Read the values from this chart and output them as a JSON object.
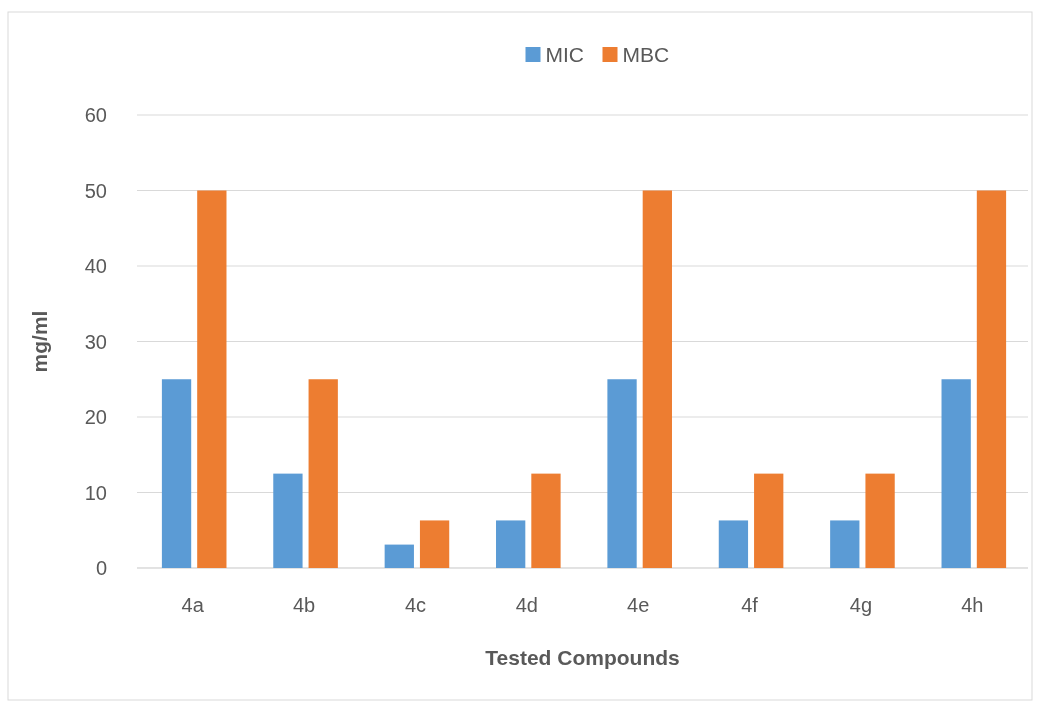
{
  "chart_data": {
    "type": "bar",
    "xlabel": "Tested Compounds",
    "ylabel": "mg/ml",
    "categories": [
      "4a",
      "4b",
      "4c",
      "4d",
      "4e",
      "4f",
      "4g",
      "4h"
    ],
    "series": [
      {
        "name": "MIC",
        "color": "#5b9bd5",
        "values": [
          25,
          12.5,
          3.1,
          6.3,
          25,
          6.3,
          6.3,
          25
        ]
      },
      {
        "name": "MBC",
        "color": "#ed7d31",
        "values": [
          50,
          25,
          6.3,
          12.5,
          50,
          12.5,
          12.5,
          50
        ]
      }
    ],
    "ylim": [
      0,
      60
    ],
    "yticks": [
      0,
      10,
      20,
      30,
      40,
      50,
      60
    ],
    "grid": "y",
    "legend": "top"
  }
}
